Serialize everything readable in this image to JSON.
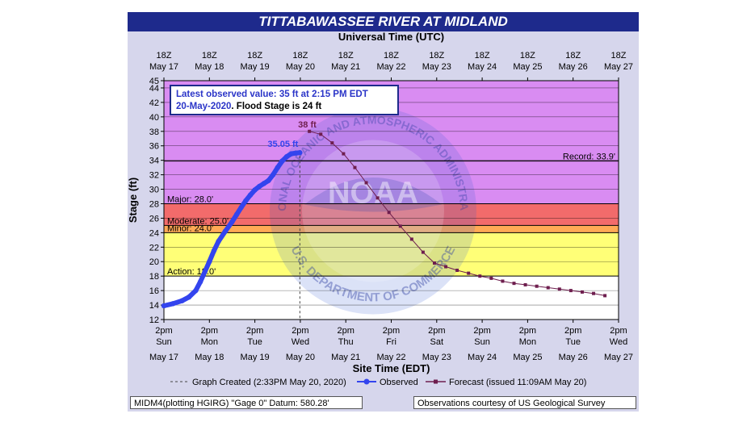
{
  "title": "TITTABAWASSEE RIVER AT MIDLAND",
  "colors": {
    "frame": "#d6d6ec",
    "title_bar": "#1e2a8c",
    "record_band": "#d98cf2",
    "major_band": "#f26b6b",
    "moderate_band": "#ffaa55",
    "minor_band": "#ffff77",
    "observed": "#3344ee",
    "forecast": "#6e1e4e"
  },
  "chart_data": {
    "type": "line",
    "top_axis_title": "Universal Time (UTC)",
    "bottom_axis_title": "Site Time (EDT)",
    "ylabel": "Stage (ft)",
    "ylim": [
      12,
      45
    ],
    "yticks": [
      12,
      14,
      16,
      18,
      20,
      22,
      24,
      26,
      28,
      30,
      32,
      34,
      36,
      38,
      40,
      42,
      44,
      45
    ],
    "xlim": [
      0,
      10
    ],
    "top_ticks": [
      {
        "time": "18Z",
        "date": "May 17"
      },
      {
        "time": "18Z",
        "date": "May 18"
      },
      {
        "time": "18Z",
        "date": "May 19"
      },
      {
        "time": "18Z",
        "date": "May 20"
      },
      {
        "time": "18Z",
        "date": "May 21"
      },
      {
        "time": "18Z",
        "date": "May 22"
      },
      {
        "time": "18Z",
        "date": "May 23"
      },
      {
        "time": "18Z",
        "date": "May 24"
      },
      {
        "time": "18Z",
        "date": "May 25"
      },
      {
        "time": "18Z",
        "date": "May 26"
      },
      {
        "time": "18Z",
        "date": "May 27"
      }
    ],
    "bottom_ticks": [
      {
        "time": "2pm",
        "day": "Sun",
        "date": "May 17"
      },
      {
        "time": "2pm",
        "day": "Mon",
        "date": "May 18"
      },
      {
        "time": "2pm",
        "day": "Tue",
        "date": "May 19"
      },
      {
        "time": "2pm",
        "day": "Wed",
        "date": "May 20"
      },
      {
        "time": "2pm",
        "day": "Thu",
        "date": "May 21"
      },
      {
        "time": "2pm",
        "day": "Fri",
        "date": "May 22"
      },
      {
        "time": "2pm",
        "day": "Sat",
        "date": "May 23"
      },
      {
        "time": "2pm",
        "day": "Sun",
        "date": "May 24"
      },
      {
        "time": "2pm",
        "day": "Mon",
        "date": "May 25"
      },
      {
        "time": "2pm",
        "day": "Tue",
        "date": "May 26"
      },
      {
        "time": "2pm",
        "day": "Wed",
        "date": "May 27"
      }
    ],
    "flood_categories": [
      {
        "name": "Record",
        "label": "Record: 33.9'",
        "value": 33.9
      },
      {
        "name": "Major",
        "label": "Major: 28.0'",
        "value": 28.0
      },
      {
        "name": "Moderate",
        "label": "Moderate: 25.0'",
        "value": 25.0
      },
      {
        "name": "Minor",
        "label": "Minor: 24.0'",
        "value": 24.0
      },
      {
        "name": "Action",
        "label": "Action: 18.0'",
        "value": 18.0
      }
    ],
    "current_marker_x": 2.99,
    "annotations": {
      "observed_peak_label": "35.05 ft",
      "forecast_peak_label": "38 ft",
      "info_line1": "Latest observed value: 35 ft at 2:15 PM EDT",
      "info_line2_a": "20-May-2020",
      "info_line2_b": ". Flood Stage is 24 ft"
    },
    "series": [
      {
        "name": "Observed",
        "x": [
          0,
          0.2,
          0.4,
          0.55,
          0.7,
          0.8,
          0.9,
          1.0,
          1.1,
          1.2,
          1.35,
          1.5,
          1.6,
          1.7,
          1.8,
          1.9,
          2.0,
          2.1,
          2.2,
          2.3,
          2.4,
          2.5,
          2.6,
          2.7,
          2.8,
          2.9,
          2.99
        ],
        "values": [
          13.9,
          14.2,
          14.6,
          15.1,
          16.0,
          17.2,
          18.6,
          20.0,
          21.5,
          22.8,
          24.2,
          25.5,
          26.5,
          27.5,
          28.4,
          29.2,
          29.9,
          30.4,
          30.8,
          31.2,
          32.0,
          33.0,
          33.9,
          34.5,
          34.9,
          35.0,
          35.05
        ]
      },
      {
        "name": "Forecast (issued 11:09AM May 20)",
        "x": [
          3.2,
          3.45,
          3.7,
          3.95,
          4.2,
          4.45,
          4.7,
          4.95,
          5.2,
          5.45,
          5.7,
          5.95,
          6.2,
          6.45,
          6.7,
          6.95,
          7.2,
          7.45,
          7.7,
          7.95,
          8.2,
          8.45,
          8.7,
          8.95,
          9.2,
          9.45,
          9.7
        ],
        "values": [
          38.0,
          37.6,
          36.4,
          34.9,
          33.0,
          30.9,
          28.8,
          26.8,
          24.9,
          23.1,
          21.3,
          19.8,
          19.3,
          18.8,
          18.4,
          18.0,
          17.7,
          17.3,
          17.0,
          16.8,
          16.6,
          16.4,
          16.2,
          16.0,
          15.8,
          15.6,
          15.3
        ]
      }
    ],
    "legend": {
      "graph_created": "Graph Created (2:33PM May 20, 2020)",
      "observed": "Observed",
      "forecast": "Forecast (issued 11:09AM May 20)"
    }
  },
  "watermark": {
    "top_text": "NATIONAL OCEANIC AND ATMOSPHERIC ADMINISTRATION",
    "center_text": "NOAA",
    "bottom_text": "U.S. DEPARTMENT OF COMMERCE"
  },
  "footer": {
    "left": "MIDM4(plotting HGIRG) \"Gage 0\" Datum: 580.28'",
    "right": "Observations courtesy of US Geological Survey"
  }
}
